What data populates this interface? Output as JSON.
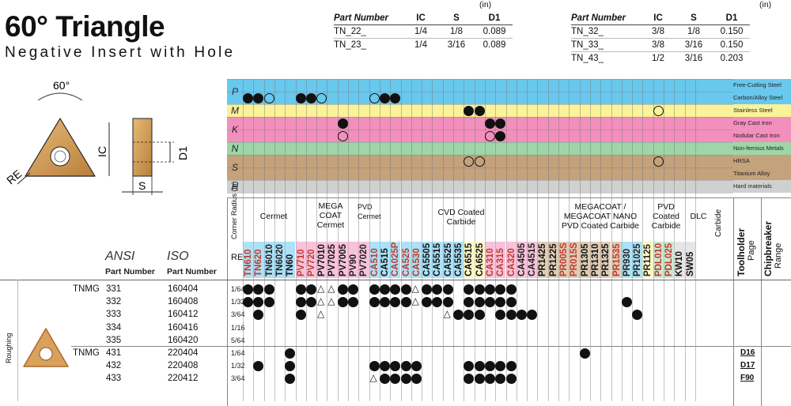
{
  "title": "60° Triangle",
  "subtitle": "Negative Insert with Hole",
  "unit_label": "(in)",
  "part_table_headers": [
    "Part Number",
    "IC",
    "S",
    "D1"
  ],
  "part_table_left": [
    {
      "pn": "TN_22_",
      "ic": "1/4",
      "s": "1/8",
      "d1": "0.089"
    },
    {
      "pn": "TN_23_",
      "ic": "1/4",
      "s": "3/16",
      "d1": "0.089"
    }
  ],
  "part_table_right": [
    {
      "pn": "TN_32_",
      "ic": "3/8",
      "s": "1/8",
      "d1": "0.150"
    },
    {
      "pn": "TN_33_",
      "ic": "3/8",
      "s": "3/16",
      "d1": "0.150"
    },
    {
      "pn": "TN_43_",
      "ic": "1/2",
      "s": "3/16",
      "d1": "0.203"
    }
  ],
  "drawing_labels": {
    "angle": "60°",
    "re": "RE",
    "ic": "IC",
    "d1": "D1",
    "s": "S"
  },
  "material_groups": [
    {
      "tag": "P",
      "color": "#69c8ee",
      "names": [
        "Free-Cutting Steel",
        "Carbon/Alloy Steel"
      ]
    },
    {
      "tag": "M",
      "color": "#fbf29a",
      "names": [
        "Stainless Steel"
      ]
    },
    {
      "tag": "K",
      "color": "#f28fbd",
      "names": [
        "Gray Cast Iron",
        "Nodular Cast Iron"
      ]
    },
    {
      "tag": "N",
      "color": "#9ed6a8",
      "names": [
        "Non-ferrous Metals"
      ]
    },
    {
      "tag": "S",
      "color": "#c3a27c",
      "names": [
        "HRSA",
        "Titanium Alloy"
      ]
    },
    {
      "tag": "H",
      "color": "#d0d0d0",
      "names": [
        "Hard materials"
      ]
    }
  ],
  "corner_radius_label": "Corner Radius (in)",
  "category_labels": {
    "cermet": "Cermet",
    "mega_coat": "MEGA COAT Cermet",
    "pvd_cermet": "PVD Cermet",
    "cvd": "CVD Coated Carbide",
    "megacoat_nano": "MEGACOAT / MEGACOAT NANO PVD Coated Carbide",
    "pvd_carbide": "PVD Coated Carbide",
    "dlc": "DLC",
    "carbide": "Carbide",
    "toolholder": "Toolholder",
    "toolholder_sub": "Page",
    "chipbreaker": "Chipbreaker",
    "chipbreaker_sub": "Range"
  },
  "grades": [
    {
      "name": "TN610",
      "color": "#c0392b"
    },
    {
      "name": "TN620",
      "color": "#c0392b"
    },
    {
      "name": "TN6010",
      "color": "#222"
    },
    {
      "name": "TN6020",
      "color": "#222"
    },
    {
      "name": "TN60",
      "color": "#111"
    },
    {
      "name": "PV710",
      "color": "#c0392b"
    },
    {
      "name": "PV720",
      "color": "#c0392b"
    },
    {
      "name": "PV7010",
      "color": "#111"
    },
    {
      "name": "PV7025",
      "color": "#111"
    },
    {
      "name": "PV7005",
      "color": "#111"
    },
    {
      "name": "PV90",
      "color": "#222"
    },
    {
      "name": "PV7020",
      "color": "#222"
    },
    {
      "name": "CA510",
      "color": "#c0392b"
    },
    {
      "name": "CA515",
      "color": "#111"
    },
    {
      "name": "CA025P",
      "color": "#c0392b"
    },
    {
      "name": "CA525",
      "color": "#c0392b"
    },
    {
      "name": "CA530",
      "color": "#c0392b"
    },
    {
      "name": "CA5505",
      "color": "#111"
    },
    {
      "name": "CA5515",
      "color": "#111"
    },
    {
      "name": "CA5525",
      "color": "#111"
    },
    {
      "name": "CA5535",
      "color": "#111"
    },
    {
      "name": "CA6515",
      "color": "#111"
    },
    {
      "name": "CA6525",
      "color": "#111"
    },
    {
      "name": "CA310",
      "color": "#c0392b"
    },
    {
      "name": "CA315",
      "color": "#c0392b"
    },
    {
      "name": "CA320",
      "color": "#c0392b"
    },
    {
      "name": "CA4505",
      "color": "#222"
    },
    {
      "name": "CA4515",
      "color": "#222"
    },
    {
      "name": "PR1425",
      "color": "#111"
    },
    {
      "name": "PR1225",
      "color": "#111"
    },
    {
      "name": "PR005S",
      "color": "#c0392b"
    },
    {
      "name": "PR015S",
      "color": "#c0392b"
    },
    {
      "name": "PR1305",
      "color": "#111"
    },
    {
      "name": "PR1310",
      "color": "#111"
    },
    {
      "name": "PR1325",
      "color": "#111"
    },
    {
      "name": "PR1535",
      "color": "#c0392b"
    },
    {
      "name": "PR930",
      "color": "#222"
    },
    {
      "name": "PR1025",
      "color": "#222"
    },
    {
      "name": "PR1125",
      "color": "#222"
    },
    {
      "name": "PDL010",
      "color": "#c0392b"
    },
    {
      "name": "PDL025",
      "color": "#c0392b"
    },
    {
      "name": "KW10",
      "color": "#111"
    },
    {
      "name": "SW05",
      "color": "#111"
    }
  ],
  "table_headers": {
    "ansi": "ANSI",
    "iso": "ISO",
    "ansi_sub": "Part Number",
    "iso_sub": "Part Number",
    "re": "RE"
  },
  "section_label": "Roughing",
  "rows": [
    {
      "family": "TNMG",
      "ansi": "331",
      "iso": "160404",
      "re": "1/64",
      "page": ""
    },
    {
      "family": "",
      "ansi": "332",
      "iso": "160408",
      "re": "1/32",
      "page": ""
    },
    {
      "family": "",
      "ansi": "333",
      "iso": "160412",
      "re": "3/64",
      "page": ""
    },
    {
      "family": "",
      "ansi": "334",
      "iso": "160416",
      "re": "1/16",
      "page": ""
    },
    {
      "family": "",
      "ansi": "335",
      "iso": "160420",
      "re": "5/64",
      "page": ""
    },
    {
      "family": "TNMG",
      "ansi": "431",
      "iso": "220404",
      "re": "1/64",
      "page": "D16"
    },
    {
      "family": "",
      "ansi": "432",
      "iso": "220408",
      "re": "1/32",
      "page": "D17"
    },
    {
      "family": "",
      "ansi": "433",
      "iso": "220412",
      "re": "3/64",
      "page": "F90"
    }
  ],
  "matrix": [
    "●●●..●●△△●●.●●●●△●●●.●●●●●................",
    "●●●..●●△△●●.●●●●△●●●.●●●●●..........●.....",
    ".●...●.△...........△●●●.●●●●.........●.....",
    "............................................",
    "............................................",
    "....●...........................●.........",
    ".●..●.......●●●●●....●●●●●.................",
    "....●.......△●●●●....●●●●●................."
  ]
}
